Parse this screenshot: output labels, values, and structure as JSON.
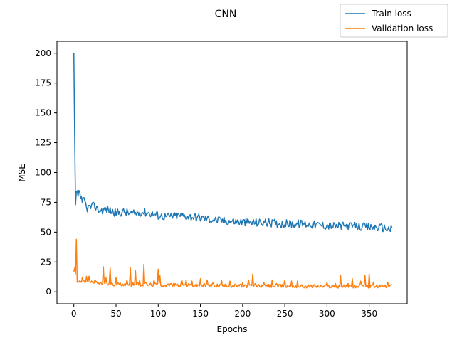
{
  "chart_data": {
    "type": "line",
    "title": "CNN",
    "xlabel": "Epochs",
    "ylabel": "MSE",
    "xlim": [
      -20,
      395
    ],
    "ylim": [
      -10,
      210
    ],
    "x_ticks": [
      0,
      50,
      100,
      150,
      200,
      250,
      300,
      350
    ],
    "y_ticks": [
      0,
      25,
      50,
      75,
      100,
      125,
      150,
      175,
      200
    ],
    "grid": false,
    "legend_position": "top-right",
    "n_points": 378,
    "series": [
      {
        "name": "Train loss",
        "color": "#1f77b4",
        "keypoints": [
          [
            0,
            200
          ],
          [
            1,
            130
          ],
          [
            2,
            73
          ],
          [
            3,
            84
          ],
          [
            5,
            80
          ],
          [
            6,
            85
          ],
          [
            8,
            78
          ],
          [
            10,
            75
          ],
          [
            12,
            79
          ],
          [
            15,
            70
          ],
          [
            20,
            71
          ],
          [
            25,
            72
          ],
          [
            30,
            68
          ],
          [
            40,
            69
          ],
          [
            50,
            66
          ],
          [
            60,
            67
          ],
          [
            70,
            65
          ],
          [
            80,
            67
          ],
          [
            90,
            66
          ],
          [
            100,
            64
          ],
          [
            110,
            63
          ],
          [
            125,
            64
          ],
          [
            140,
            63
          ],
          [
            150,
            62
          ],
          [
            170,
            60
          ],
          [
            190,
            59
          ],
          [
            210,
            58
          ],
          [
            230,
            58
          ],
          [
            250,
            57
          ],
          [
            270,
            57
          ],
          [
            290,
            56
          ],
          [
            310,
            55
          ],
          [
            330,
            55
          ],
          [
            350,
            54
          ],
          [
            365,
            54
          ],
          [
            377,
            52
          ]
        ],
        "noise_amplitude": 3.5
      },
      {
        "name": "Validation loss",
        "color": "#ff7f0e",
        "baseline": [
          [
            0,
            17
          ],
          [
            4,
            8
          ],
          [
            15,
            8
          ],
          [
            40,
            6
          ],
          [
            80,
            5.5
          ],
          [
            120,
            5
          ],
          [
            200,
            4.5
          ],
          [
            280,
            4
          ],
          [
            377,
            4
          ]
        ],
        "spikes": [
          [
            0,
            17
          ],
          [
            1,
            20
          ],
          [
            2,
            15
          ],
          [
            3,
            44
          ],
          [
            4,
            8
          ],
          [
            10,
            12
          ],
          [
            15,
            13
          ],
          [
            18,
            13
          ],
          [
            25,
            10
          ],
          [
            35,
            21
          ],
          [
            38,
            12
          ],
          [
            43,
            20
          ],
          [
            50,
            12
          ],
          [
            63,
            10
          ],
          [
            67,
            20
          ],
          [
            70,
            8
          ],
          [
            73,
            18
          ],
          [
            78,
            10
          ],
          [
            83,
            23
          ],
          [
            85,
            8
          ],
          [
            95,
            10
          ],
          [
            100,
            19
          ],
          [
            102,
            14
          ],
          [
            115,
            7
          ],
          [
            128,
            10
          ],
          [
            133,
            10
          ],
          [
            140,
            9
          ],
          [
            150,
            11
          ],
          [
            158,
            10
          ],
          [
            165,
            8
          ],
          [
            175,
            10
          ],
          [
            185,
            9
          ],
          [
            200,
            8
          ],
          [
            207,
            10
          ],
          [
            212,
            15
          ],
          [
            215,
            7
          ],
          [
            225,
            8
          ],
          [
            235,
            10
          ],
          [
            240,
            7
          ],
          [
            250,
            10
          ],
          [
            258,
            9
          ],
          [
            265,
            9
          ],
          [
            285,
            6
          ],
          [
            300,
            8
          ],
          [
            310,
            7
          ],
          [
            316,
            14
          ],
          [
            325,
            7
          ],
          [
            330,
            11
          ],
          [
            340,
            9
          ],
          [
            345,
            14
          ],
          [
            350,
            15
          ],
          [
            355,
            8
          ],
          [
            365,
            6
          ],
          [
            372,
            8
          ],
          [
            377,
            6
          ]
        ],
        "noise_amplitude": 1.5
      }
    ]
  }
}
